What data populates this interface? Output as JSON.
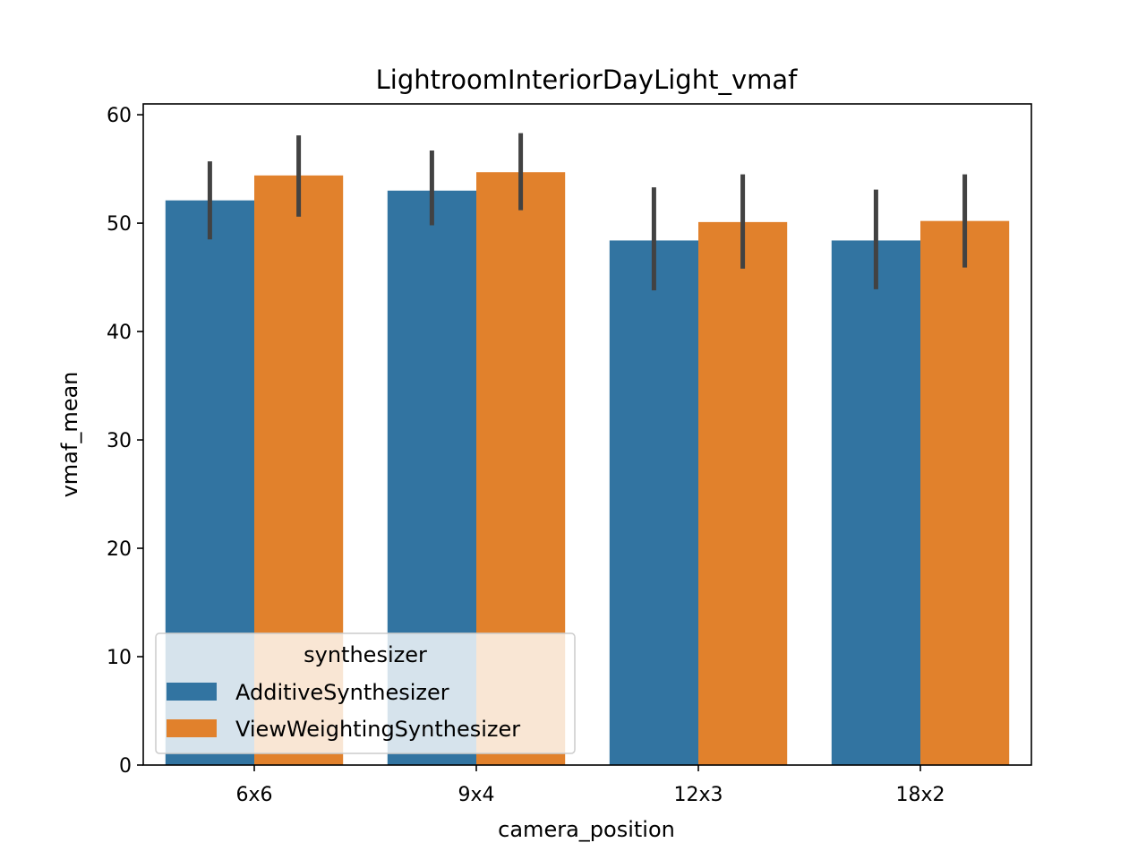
{
  "chart_data": {
    "type": "bar",
    "title": "LightroomInteriorDayLight_vmaf",
    "xlabel": "camera_position",
    "ylabel": "vmaf_mean",
    "categories": [
      "6x6",
      "9x4",
      "12x3",
      "18x2"
    ],
    "ylim": [
      0,
      61
    ],
    "yticks": [
      0,
      10,
      20,
      30,
      40,
      50,
      60
    ],
    "series": [
      {
        "name": "AdditiveSynthesizer",
        "color": "#3274a1",
        "values": [
          52.1,
          53.0,
          48.4,
          48.4
        ],
        "err_low": [
          48.5,
          49.8,
          43.8,
          43.9
        ],
        "err_high": [
          55.7,
          56.7,
          53.3,
          53.1
        ]
      },
      {
        "name": "ViewWeightingSynthesizer",
        "color": "#e1812c",
        "values": [
          54.4,
          54.7,
          50.1,
          50.2
        ],
        "err_low": [
          50.6,
          51.2,
          45.8,
          45.9
        ],
        "err_high": [
          58.1,
          58.3,
          54.5,
          54.5
        ]
      }
    ],
    "error_bar_color": "#424242",
    "legend": {
      "title": "synthesizer",
      "position": "lower-left"
    },
    "grid": false
  }
}
